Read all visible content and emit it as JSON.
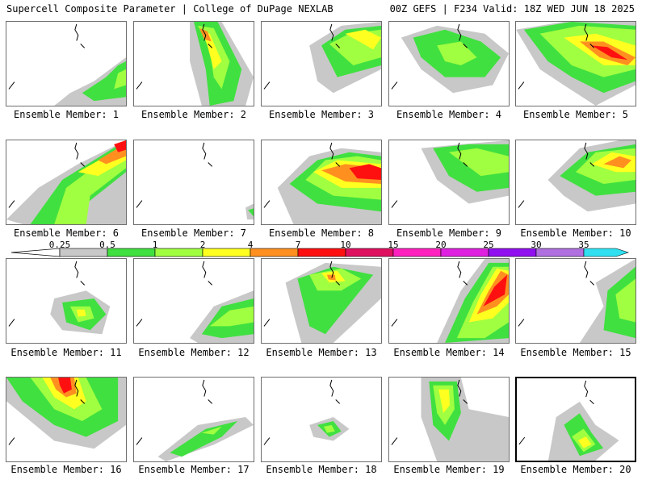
{
  "header": {
    "left_title": "Supercell Composite Parameter | College of DuPage NEXLAB",
    "right_title": "00Z GEFS | F234 Valid: 18Z WED JUN 18 2025"
  },
  "colorbar": {
    "levels": [
      "0.25",
      "0.5",
      "1",
      "2",
      "4",
      "7",
      "10",
      "15",
      "20",
      "25",
      "30",
      "35"
    ],
    "colors": [
      "#c8c8c8",
      "#40e040",
      "#a0ff40",
      "#ffff20",
      "#ff9020",
      "#ff1010",
      "#e01060",
      "#ff20c0",
      "#e020e0",
      "#9010f0",
      "#b070e0",
      "#30e0f0"
    ]
  },
  "panels": [
    {
      "label": "Ensemble Member: 1",
      "selected": false
    },
    {
      "label": "Ensemble Member: 2",
      "selected": false
    },
    {
      "label": "Ensemble Member: 3",
      "selected": false
    },
    {
      "label": "Ensemble Member: 4",
      "selected": false
    },
    {
      "label": "Ensemble Member: 5",
      "selected": false
    },
    {
      "label": "Ensemble Member: 6",
      "selected": false
    },
    {
      "label": "Ensemble Member: 7",
      "selected": false
    },
    {
      "label": "Ensemble Member: 8",
      "selected": false
    },
    {
      "label": "Ensemble Member: 9",
      "selected": false
    },
    {
      "label": "Ensemble Member: 10",
      "selected": false
    },
    {
      "label": "Ensemble Member: 11",
      "selected": false
    },
    {
      "label": "Ensemble Member: 12",
      "selected": false
    },
    {
      "label": "Ensemble Member: 13",
      "selected": false
    },
    {
      "label": "Ensemble Member: 14",
      "selected": false
    },
    {
      "label": "Ensemble Member: 15",
      "selected": false
    },
    {
      "label": "Ensemble Member: 16",
      "selected": false
    },
    {
      "label": "Ensemble Member: 17",
      "selected": false
    },
    {
      "label": "Ensemble Member: 18",
      "selected": false
    },
    {
      "label": "Ensemble Member: 19",
      "selected": false
    },
    {
      "label": "Ensemble Member: 20",
      "selected": true
    }
  ]
}
